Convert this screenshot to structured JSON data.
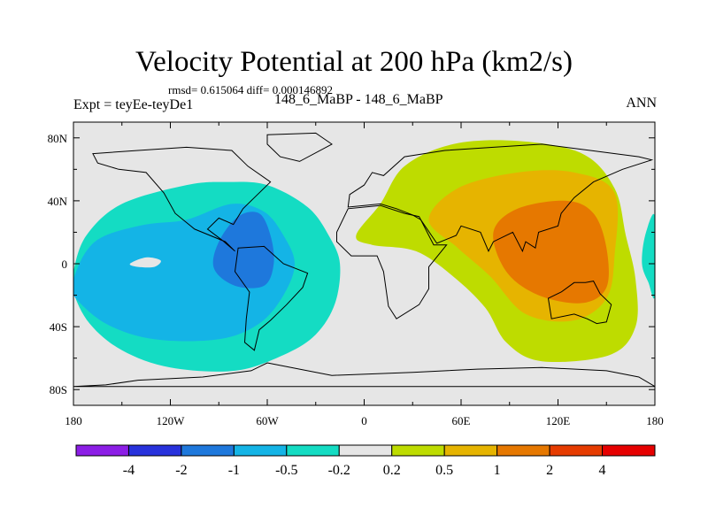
{
  "chart_data": {
    "type": "contour-map",
    "title": "Velocity Potential at 200 hPa (km2/s)",
    "subtitle": "rmsd= 0.615064 diff= 0.000146892",
    "left_label": "Expt = teyEe-teyDe1",
    "center_label": "148_6_MaBP - 148_6_MaBP",
    "right_label": "ANN",
    "x_ticks": [
      "180",
      "120W",
      "60W",
      "0",
      "60E",
      "120E",
      "180"
    ],
    "x_values": [
      -180,
      -120,
      -60,
      0,
      60,
      120,
      180
    ],
    "y_ticks": [
      "80N",
      "40N",
      "0",
      "40S",
      "80S"
    ],
    "y_values": [
      80,
      40,
      0,
      -40,
      -80
    ],
    "xlim": [
      -180,
      180
    ],
    "ylim": [
      -90,
      90
    ],
    "colorbar": {
      "labels": [
        "-4",
        "-2",
        "-1",
        "-0.5",
        "-0.2",
        "0.2",
        "0.5",
        "1",
        "2",
        "4"
      ],
      "colors": [
        "#8c1ee6",
        "#2832dc",
        "#1e78dc",
        "#14b4e6",
        "#14dcc3",
        "#e6e6e6",
        "#bedc00",
        "#e6b400",
        "#e67800",
        "#e63c00",
        "#e60000"
      ]
    },
    "regions": [
      {
        "name": "west-hemisphere-low",
        "level": -0.2,
        "color": "#14dcc3",
        "points": [
          [
            -180,
            -5
          ],
          [
            -172,
            18
          ],
          [
            -150,
            38
          ],
          [
            -110,
            50
          ],
          [
            -85,
            52
          ],
          [
            -60,
            50
          ],
          [
            -35,
            36
          ],
          [
            -22,
            18
          ],
          [
            -15,
            0
          ],
          [
            -18,
            -25
          ],
          [
            -30,
            -45
          ],
          [
            -50,
            -58
          ],
          [
            -80,
            -68
          ],
          [
            -120,
            -66
          ],
          [
            -150,
            -55
          ],
          [
            -170,
            -38
          ],
          [
            -180,
            -18
          ]
        ]
      },
      {
        "name": "west-hemisphere-mid",
        "level": -0.5,
        "color": "#14b4e6",
        "points": [
          [
            -180,
            -10
          ],
          [
            -172,
            8
          ],
          [
            -160,
            18
          ],
          [
            -135,
            25
          ],
          [
            -110,
            28
          ],
          [
            -82,
            38
          ],
          [
            -62,
            33
          ],
          [
            -50,
            18
          ],
          [
            -43,
            0
          ],
          [
            -50,
            -20
          ],
          [
            -65,
            -38
          ],
          [
            -90,
            -48
          ],
          [
            -130,
            -48
          ],
          [
            -160,
            -38
          ],
          [
            -180,
            -20
          ]
        ]
      },
      {
        "name": "west-hemisphere-core",
        "level": -1,
        "color": "#1e78dc",
        "points": [
          [
            -93,
            -3
          ],
          [
            -90,
            14
          ],
          [
            -78,
            30
          ],
          [
            -65,
            32
          ],
          [
            -58,
            18
          ],
          [
            -56,
            0
          ],
          [
            -62,
            -14
          ],
          [
            -80,
            -14
          ]
        ]
      },
      {
        "name": "pacific-gap",
        "level": 0,
        "color": "#e6e6e6",
        "points": [
          [
            -145,
            0
          ],
          [
            -135,
            4
          ],
          [
            -126,
            2
          ],
          [
            -130,
            -2
          ],
          [
            -140,
            -2
          ]
        ]
      },
      {
        "name": "east-hemisphere-high",
        "level": 0.2,
        "color": "#bedc00",
        "points": [
          [
            -5,
            18
          ],
          [
            10,
            38
          ],
          [
            25,
            62
          ],
          [
            55,
            76
          ],
          [
            95,
            78
          ],
          [
            135,
            70
          ],
          [
            155,
            48
          ],
          [
            162,
            18
          ],
          [
            168,
            -10
          ],
          [
            168,
            -40
          ],
          [
            152,
            -58
          ],
          [
            110,
            -62
          ],
          [
            88,
            -50
          ],
          [
            75,
            -28
          ],
          [
            55,
            -8
          ],
          [
            32,
            8
          ],
          [
            5,
            12
          ]
        ]
      },
      {
        "name": "east-hemisphere-mid",
        "level": 0.5,
        "color": "#e6b400",
        "points": [
          [
            40,
            28
          ],
          [
            58,
            48
          ],
          [
            95,
            58
          ],
          [
            130,
            58
          ],
          [
            155,
            45
          ],
          [
            155,
            5
          ],
          [
            150,
            -22
          ],
          [
            130,
            -36
          ],
          [
            100,
            -32
          ],
          [
            78,
            -8
          ],
          [
            58,
            10
          ]
        ]
      },
      {
        "name": "east-hemisphere-core",
        "level": 1,
        "color": "#e67800",
        "points": [
          [
            80,
            20
          ],
          [
            95,
            35
          ],
          [
            125,
            40
          ],
          [
            142,
            32
          ],
          [
            150,
            10
          ],
          [
            150,
            -15
          ],
          [
            135,
            -25
          ],
          [
            108,
            -20
          ],
          [
            88,
            -5
          ]
        ]
      },
      {
        "name": "east-edge-low",
        "level": -0.2,
        "color": "#14dcc3",
        "points": [
          [
            180,
            30
          ],
          [
            174,
            18
          ],
          [
            172,
            0
          ],
          [
            176,
            -12
          ],
          [
            180,
            -20
          ]
        ]
      }
    ]
  }
}
